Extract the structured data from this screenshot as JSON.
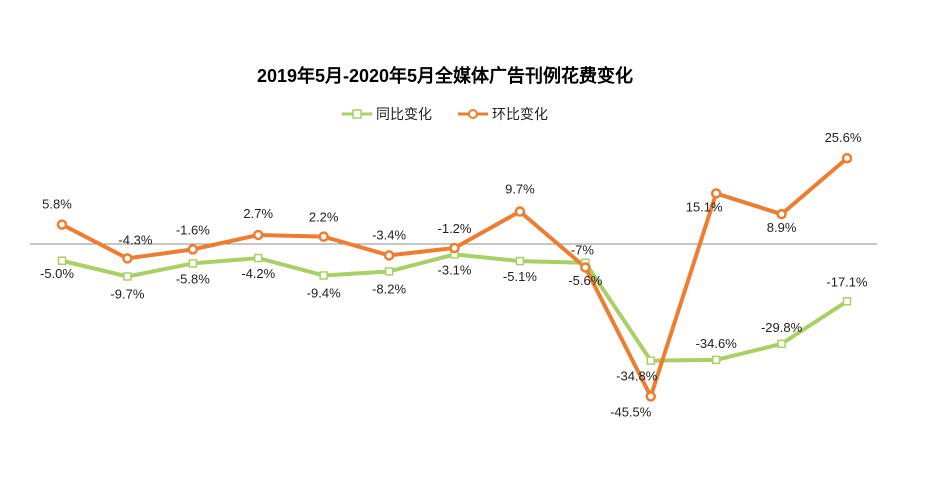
{
  "chart_data": {
    "type": "line",
    "title": "2019年5月-2020年5月全媒体广告刊例花费变化",
    "categories": [
      "",
      "",
      "",
      "",
      "",
      "",
      "",
      "",
      "",
      "",
      "",
      "",
      ""
    ],
    "series": [
      {
        "name": "同比变化",
        "color": "#a9d064",
        "marker": "square",
        "values": [
          -5.0,
          -9.7,
          -5.8,
          -4.2,
          -9.4,
          -8.2,
          -3.1,
          -5.1,
          -5.6,
          -34.8,
          -34.6,
          -29.8,
          -17.1
        ],
        "labels": [
          "-5.0%",
          "-9.7%",
          "-5.8%",
          "-4.2%",
          "-9.4%",
          "-8.2%",
          "-3.1%",
          "-5.1%",
          "-5.6%",
          "-34.8%",
          "-34.6%",
          "-29.8%",
          "-17.1%"
        ]
      },
      {
        "name": "环比变化",
        "color": "#ed7d31",
        "marker": "circle",
        "values": [
          5.8,
          -4.3,
          -1.6,
          2.7,
          2.2,
          -3.4,
          -1.2,
          9.7,
          -7,
          -45.5,
          15.1,
          8.9,
          25.6
        ],
        "labels": [
          "5.8%",
          "-4.3%",
          "-1.6%",
          "2.7%",
          "2.2%",
          "-3.4%",
          "-1.2%",
          "9.7%",
          "-7%",
          "-45.5%",
          "15.1%",
          "8.9%",
          "25.6%"
        ]
      }
    ],
    "ylim": [
      -50,
      30
    ],
    "grid": false,
    "legend": "top-center"
  }
}
